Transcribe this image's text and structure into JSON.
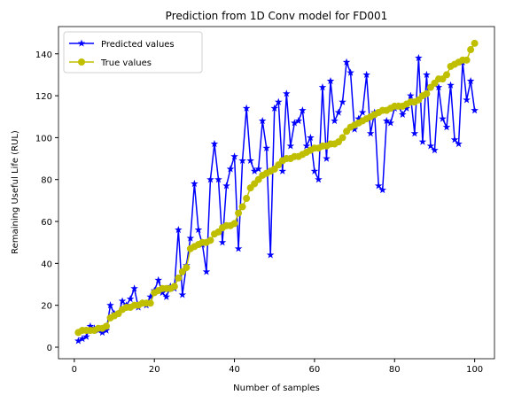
{
  "chart_data": {
    "type": "line",
    "title": "Prediction from 1D Conv model for FD001",
    "xlabel": "Number of samples",
    "ylabel": "Remaining Useful Life (RUL)",
    "x": [
      1,
      2,
      3,
      4,
      5,
      6,
      7,
      8,
      9,
      10,
      11,
      12,
      13,
      14,
      15,
      16,
      17,
      18,
      19,
      20,
      21,
      22,
      23,
      24,
      25,
      26,
      27,
      28,
      29,
      30,
      31,
      32,
      33,
      34,
      35,
      36,
      37,
      38,
      39,
      40,
      41,
      42,
      43,
      44,
      45,
      46,
      47,
      48,
      49,
      50,
      51,
      52,
      53,
      54,
      55,
      56,
      57,
      58,
      59,
      60,
      61,
      62,
      63,
      64,
      65,
      66,
      67,
      68,
      69,
      70,
      71,
      72,
      73,
      74,
      75,
      76,
      77,
      78,
      79,
      80,
      81,
      82,
      83,
      84,
      85,
      86,
      87,
      88,
      89,
      90,
      91,
      92,
      93,
      94,
      95,
      96,
      97,
      98,
      99,
      100
    ],
    "series": [
      {
        "name": "Predicted values",
        "color": "#0000ff",
        "marker": "star",
        "values": [
          3,
          4,
          5,
          10,
          9,
          8,
          7,
          8,
          20,
          16,
          16,
          22,
          20,
          23,
          28,
          19,
          21,
          20,
          24,
          27,
          32,
          26,
          24,
          29,
          28,
          56,
          25,
          39,
          52,
          78,
          56,
          49,
          36,
          80,
          97,
          80,
          50,
          77,
          85,
          91,
          47,
          89,
          114,
          89,
          84,
          85,
          108,
          95,
          44,
          114,
          117,
          84,
          121,
          96,
          107,
          108,
          113,
          96,
          100,
          84,
          80,
          124,
          90,
          127,
          108,
          112,
          117,
          136,
          131,
          104,
          109,
          112,
          130,
          102,
          112,
          77,
          75,
          108,
          107,
          114,
          115,
          111,
          114,
          120,
          102,
          138,
          98,
          130,
          96,
          94,
          124,
          109,
          105,
          125,
          99,
          97,
          136,
          118,
          127,
          113
        ]
      },
      {
        "name": "True values",
        "color": "#bfbf00",
        "marker": "circle",
        "values": [
          7,
          8,
          8,
          8,
          8,
          9,
          9,
          10,
          14,
          15,
          16,
          18,
          19,
          19,
          20,
          20,
          21,
          21,
          21,
          26,
          27,
          28,
          28,
          28,
          29,
          33,
          36,
          38,
          47,
          48,
          49,
          50,
          50,
          51,
          54,
          55,
          57,
          58,
          58,
          59,
          64,
          67,
          71,
          76,
          78,
          80,
          82,
          83,
          84,
          85,
          87,
          89,
          90,
          90,
          91,
          91,
          92,
          93,
          94,
          95,
          95,
          96,
          96,
          97,
          97,
          98,
          100,
          103,
          105,
          106,
          107,
          108,
          109,
          110,
          111,
          112,
          113,
          113,
          114,
          115,
          115,
          115,
          116,
          117,
          117,
          118,
          120,
          121,
          124,
          126,
          128,
          128,
          130,
          134,
          135,
          136,
          137,
          137,
          142,
          145
        ]
      }
    ],
    "xlim": [
      -3.95,
      104.95
    ],
    "ylim": [
      -5.5,
      153
    ],
    "xticks": [
      0,
      20,
      40,
      60,
      80,
      100
    ],
    "yticks": [
      0,
      20,
      40,
      60,
      80,
      100,
      120,
      140
    ],
    "legend": "upper left"
  }
}
